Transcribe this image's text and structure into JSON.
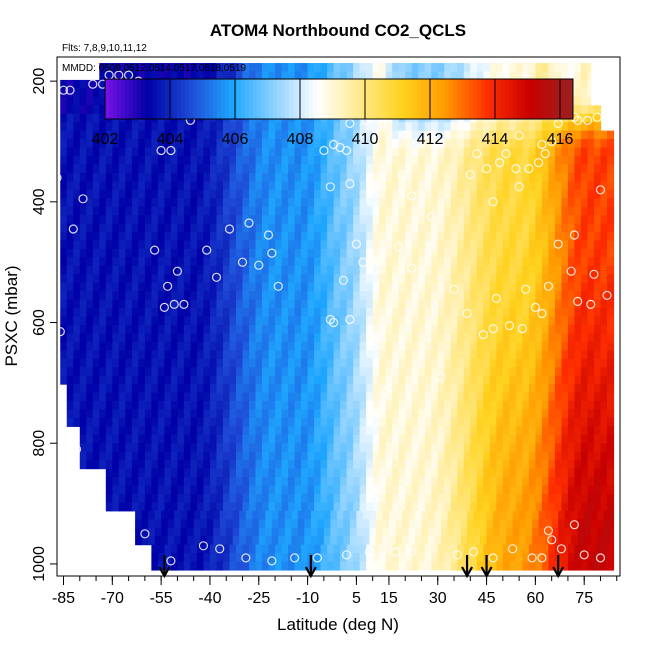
{
  "chart_data": {
    "type": "heatmap",
    "title": "ATOM4 Northbound CO2_QCLS",
    "flights_label": "Flts: 7,8,9,10,11,12",
    "dates_label": "MMDD: 0509,0512,0514,0517,0518,0519",
    "xlabel": "Latitude (deg N)",
    "ylabel": "PSXC (mbar)",
    "xlim": [
      -87,
      86
    ],
    "ylim": [
      1020,
      160
    ],
    "x_ticks": [
      -85,
      -70,
      -55,
      -40,
      -25,
      -10,
      5,
      15,
      30,
      45,
      60,
      75
    ],
    "x_tick_labels": [
      "-85",
      "-70",
      "-55",
      "-40",
      "-25",
      "-10",
      "5",
      "15",
      "30",
      "45",
      "60",
      "75"
    ],
    "y_ticks": [
      200,
      400,
      600,
      800,
      1000
    ],
    "y_tick_labels": [
      "200",
      "400",
      "600",
      "800",
      "1000"
    ],
    "colorbar": {
      "range": [
        402,
        416.4
      ],
      "ticks": [
        402,
        404,
        406,
        408,
        410,
        412,
        414,
        416
      ],
      "tick_labels": [
        "402",
        "404",
        "406",
        "408",
        "410",
        "412",
        "414",
        "416"
      ],
      "colors": [
        "#7a12e8",
        "#0000a6",
        "#1e4ad6",
        "#1ea6ff",
        "#8fd2ff",
        "#ffffff",
        "#ffe98a",
        "#ffd21e",
        "#ff9a00",
        "#ff2e00",
        "#c80000",
        "#992222"
      ]
    },
    "flight_profile_latitudes": [
      -54,
      -9,
      39,
      45,
      67
    ],
    "sample_points": [
      {
        "lat": -85,
        "p": 215
      },
      {
        "lat": -83,
        "p": 215
      },
      {
        "lat": -76,
        "p": 205
      },
      {
        "lat": -73,
        "p": 205
      },
      {
        "lat": -71,
        "p": 190
      },
      {
        "lat": -68,
        "p": 190
      },
      {
        "lat": -65,
        "p": 190
      },
      {
        "lat": -62,
        "p": 200
      },
      {
        "lat": -79,
        "p": 395
      },
      {
        "lat": -82,
        "p": 445
      },
      {
        "lat": -87,
        "p": 360
      },
      {
        "lat": -86,
        "p": 615
      },
      {
        "lat": -81,
        "p": 810
      },
      {
        "lat": -57,
        "p": 480
      },
      {
        "lat": -55,
        "p": 315
      },
      {
        "lat": -52,
        "p": 315
      },
      {
        "lat": -46,
        "p": 265
      },
      {
        "lat": -45,
        "p": 255
      },
      {
        "lat": -42,
        "p": 250
      },
      {
        "lat": -37,
        "p": 255
      },
      {
        "lat": -53,
        "p": 540
      },
      {
        "lat": -50,
        "p": 515
      },
      {
        "lat": -54,
        "p": 575
      },
      {
        "lat": -51,
        "p": 570
      },
      {
        "lat": -48,
        "p": 570
      },
      {
        "lat": -41,
        "p": 480
      },
      {
        "lat": -38,
        "p": 525
      },
      {
        "lat": -34,
        "p": 445
      },
      {
        "lat": -28,
        "p": 435
      },
      {
        "lat": -30,
        "p": 500
      },
      {
        "lat": -25,
        "p": 505
      },
      {
        "lat": -19,
        "p": 540
      },
      {
        "lat": -21,
        "p": 485
      },
      {
        "lat": -22,
        "p": 455
      },
      {
        "lat": -16,
        "p": 210
      },
      {
        "lat": -8,
        "p": 255
      },
      {
        "lat": -5,
        "p": 315
      },
      {
        "lat": -2,
        "p": 305
      },
      {
        "lat": 0,
        "p": 310
      },
      {
        "lat": 2,
        "p": 315
      },
      {
        "lat": 3,
        "p": 270
      },
      {
        "lat": 8,
        "p": 265
      },
      {
        "lat": 13,
        "p": 270
      },
      {
        "lat": -3,
        "p": 375
      },
      {
        "lat": 3,
        "p": 370
      },
      {
        "lat": 5,
        "p": 470
      },
      {
        "lat": 7,
        "p": 500
      },
      {
        "lat": 1,
        "p": 530
      },
      {
        "lat": -3,
        "p": 595
      },
      {
        "lat": -2,
        "p": 600
      },
      {
        "lat": 3,
        "p": 595
      },
      {
        "lat": 19,
        "p": 355
      },
      {
        "lat": 22,
        "p": 390
      },
      {
        "lat": 28,
        "p": 425
      },
      {
        "lat": 18,
        "p": 475
      },
      {
        "lat": 22,
        "p": 510
      },
      {
        "lat": 28,
        "p": 475
      },
      {
        "lat": 35,
        "p": 545
      },
      {
        "lat": 39,
        "p": 585
      },
      {
        "lat": 44,
        "p": 620
      },
      {
        "lat": 47,
        "p": 610
      },
      {
        "lat": 52,
        "p": 605
      },
      {
        "lat": 56,
        "p": 610
      },
      {
        "lat": 48,
        "p": 560
      },
      {
        "lat": 57,
        "p": 545
      },
      {
        "lat": 64,
        "p": 540
      },
      {
        "lat": 60,
        "p": 575
      },
      {
        "lat": 62,
        "p": 585
      },
      {
        "lat": 71,
        "p": 515
      },
      {
        "lat": 73,
        "p": 565
      },
      {
        "lat": 77,
        "p": 570
      },
      {
        "lat": 82,
        "p": 555
      },
      {
        "lat": 67,
        "p": 470
      },
      {
        "lat": 72,
        "p": 455
      },
      {
        "lat": 78,
        "p": 520
      },
      {
        "lat": 40,
        "p": 355
      },
      {
        "lat": 45,
        "p": 345
      },
      {
        "lat": 49,
        "p": 335
      },
      {
        "lat": 51,
        "p": 320
      },
      {
        "lat": 54,
        "p": 345
      },
      {
        "lat": 58,
        "p": 345
      },
      {
        "lat": 61,
        "p": 335
      },
      {
        "lat": 63,
        "p": 320
      },
      {
        "lat": 65,
        "p": 300
      },
      {
        "lat": 55,
        "p": 290
      },
      {
        "lat": 42,
        "p": 320
      },
      {
        "lat": 47,
        "p": 400
      },
      {
        "lat": 62,
        "p": 305
      },
      {
        "lat": 66,
        "p": 215
      },
      {
        "lat": 67,
        "p": 215
      },
      {
        "lat": 68,
        "p": 205
      },
      {
        "lat": 70,
        "p": 230
      },
      {
        "lat": 72,
        "p": 260
      },
      {
        "lat": 73,
        "p": 265
      },
      {
        "lat": 76,
        "p": 265
      },
      {
        "lat": 79,
        "p": 260
      },
      {
        "lat": 67,
        "p": 270
      },
      {
        "lat": 80,
        "p": 380
      },
      {
        "lat": 55,
        "p": 375
      },
      {
        "lat": 31,
        "p": 690
      },
      {
        "lat": 14,
        "p": 715
      },
      {
        "lat": -60,
        "p": 950
      },
      {
        "lat": -42,
        "p": 970
      },
      {
        "lat": -37,
        "p": 975
      },
      {
        "lat": -29,
        "p": 990
      },
      {
        "lat": -21,
        "p": 995
      },
      {
        "lat": -14,
        "p": 990
      },
      {
        "lat": -7,
        "p": 990
      },
      {
        "lat": 2,
        "p": 985
      },
      {
        "lat": 9,
        "p": 980
      },
      {
        "lat": 17,
        "p": 980
      },
      {
        "lat": 22,
        "p": 980
      },
      {
        "lat": 36,
        "p": 985
      },
      {
        "lat": 41,
        "p": 980
      },
      {
        "lat": 47,
        "p": 990
      },
      {
        "lat": 53,
        "p": 975
      },
      {
        "lat": 59,
        "p": 990
      },
      {
        "lat": 62,
        "p": 990
      },
      {
        "lat": 64,
        "p": 945
      },
      {
        "lat": 65,
        "p": 960
      },
      {
        "lat": 68,
        "p": 975
      },
      {
        "lat": 72,
        "p": 935
      },
      {
        "lat": 75,
        "p": 985
      },
      {
        "lat": 80,
        "p": 990
      },
      {
        "lat": -52,
        "p": 995
      }
    ]
  }
}
